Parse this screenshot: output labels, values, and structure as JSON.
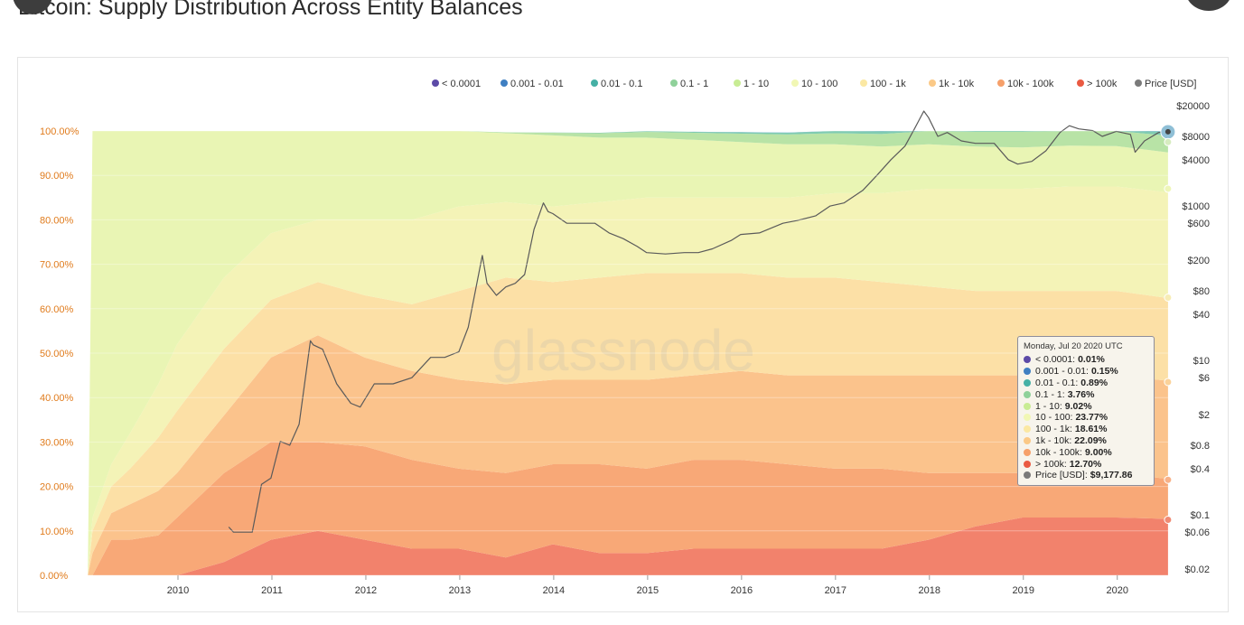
{
  "page": {
    "title": "Bitcoin: Supply Distribution Across Entity Balances"
  },
  "watermark": "glassnode",
  "tooltip": {
    "date": "Monday, Jul 20 2020 UTC",
    "rows": [
      {
        "label": "< 0.0001:",
        "value": "0.01%",
        "color": "#5c4aa7"
      },
      {
        "label": "0.001 - 0.01:",
        "value": "0.15%",
        "color": "#3f7fc2"
      },
      {
        "label": "0.01 - 0.1:",
        "value": "0.89%",
        "color": "#45b0a5"
      },
      {
        "label": "0.1 - 1:",
        "value": "3.76%",
        "color": "#8fd19a"
      },
      {
        "label": "1 - 10:",
        "value": "9.02%",
        "color": "#c8ec94"
      },
      {
        "label": "10 - 100:",
        "value": "23.77%",
        "color": "#f1f7b4"
      },
      {
        "label": "100 - 1k:",
        "value": "18.61%",
        "color": "#fbe8a3"
      },
      {
        "label": "1k - 10k:",
        "value": "22.09%",
        "color": "#fbc987"
      },
      {
        "label": "10k - 100k:",
        "value": "9.00%",
        "color": "#f6a06a"
      },
      {
        "label": "> 100k:",
        "value": "12.70%",
        "color": "#ea5a42"
      },
      {
        "label": "Price [USD]:",
        "value": "$9,177.86",
        "color": "#7a7a7a"
      }
    ]
  },
  "chart_data": {
    "type": "area",
    "stacked": true,
    "title": "Bitcoin: Supply Distribution Across Entity Balances",
    "x_ticks": [
      "2010",
      "2011",
      "2012",
      "2013",
      "2014",
      "2015",
      "2016",
      "2017",
      "2018",
      "2019",
      "2020"
    ],
    "x_range": [
      2009.0,
      2020.58
    ],
    "y_left_ticks": [
      "0.00%",
      "10.00%",
      "20.00%",
      "30.00%",
      "40.00%",
      "50.00%",
      "60.00%",
      "70.00%",
      "80.00%",
      "90.00%",
      "100.00%"
    ],
    "y_left_range": [
      0,
      100
    ],
    "y_right_ticks": [
      "$0.02",
      "$0.06",
      "$0.1",
      "$0.4",
      "$0.8",
      "$2",
      "$6",
      "$10",
      "$40",
      "$80",
      "$200",
      "$600",
      "$1000",
      "$4000",
      "$8000",
      "$20000"
    ],
    "y_right_scale": "log",
    "legend_position": "top-right",
    "x": [
      2009.05,
      2009.1,
      2009.3,
      2009.5,
      2009.8,
      2010.0,
      2010.5,
      2011.0,
      2011.5,
      2012.0,
      2012.5,
      2013.0,
      2013.5,
      2014.0,
      2014.5,
      2015.0,
      2015.5,
      2016.0,
      2016.5,
      2017.0,
      2017.5,
      2018.0,
      2018.5,
      2019.0,
      2019.5,
      2020.0,
      2020.55
    ],
    "series": [
      {
        "name": "> 100k",
        "color": "#f2826c",
        "values": [
          0,
          0,
          0,
          0,
          0,
          0,
          3,
          8,
          10,
          8,
          6,
          6,
          4,
          7,
          5,
          5,
          6,
          6,
          6,
          6,
          6,
          8,
          11,
          13,
          13,
          13,
          12.7
        ]
      },
      {
        "name": "10k - 100k",
        "color": "#f8a877",
        "values": [
          0,
          0,
          8,
          8,
          9,
          13,
          20,
          22,
          20,
          21,
          20,
          18,
          19,
          18,
          20,
          19,
          20,
          20,
          19,
          18,
          18,
          15,
          12,
          10,
          10,
          10,
          9
        ]
      },
      {
        "name": "1k - 10k",
        "color": "#fbc38c",
        "values": [
          0,
          5,
          6,
          8,
          10,
          10,
          13,
          19,
          24,
          20,
          20,
          20,
          20,
          19,
          19,
          20,
          19,
          20,
          20,
          21,
          21,
          22,
          22,
          22,
          22,
          22,
          22.09
        ]
      },
      {
        "name": "100 - 1k",
        "color": "#fce0a6",
        "values": [
          0,
          5,
          6,
          8,
          12,
          14,
          15,
          13,
          12,
          14,
          15,
          20,
          24,
          22,
          23,
          24,
          23,
          22,
          22,
          22,
          21,
          20,
          19,
          19,
          19,
          19,
          18.61
        ]
      },
      {
        "name": "10 - 100",
        "color": "#f4f3b7",
        "values": [
          0,
          3,
          5,
          8,
          12,
          15,
          16,
          15,
          14,
          17,
          19,
          19,
          17,
          17,
          17,
          17,
          17,
          17,
          18,
          19,
          20,
          22,
          23,
          23,
          23.5,
          23.5,
          23.77
        ]
      },
      {
        "name": "1 - 10",
        "color": "#e9f5b4",
        "values": [
          0,
          87,
          75,
          68,
          57,
          48,
          33,
          23,
          20,
          20,
          20,
          17,
          15.5,
          16,
          14.5,
          13.5,
          13,
          12.5,
          12,
          11,
          10.5,
          10,
          9.5,
          9.3,
          9.2,
          9.1,
          9.02
        ]
      },
      {
        "name": "0.1 - 1",
        "color": "#b8e3a6",
        "values": [
          0,
          0,
          0,
          0,
          0,
          0,
          0,
          0,
          0,
          0,
          0,
          0,
          0.2,
          0.6,
          1.0,
          1.3,
          1.6,
          1.9,
          2.2,
          2.5,
          2.8,
          3.1,
          3.3,
          3.5,
          3.6,
          3.7,
          3.76
        ]
      },
      {
        "name": "0.01 - 0.1",
        "color": "#7fcbb1",
        "values": [
          0,
          0,
          0,
          0,
          0,
          0,
          0,
          0,
          0,
          0,
          0,
          0,
          0,
          0.05,
          0.1,
          0.15,
          0.2,
          0.3,
          0.4,
          0.5,
          0.6,
          0.7,
          0.75,
          0.8,
          0.85,
          0.87,
          0.89
        ]
      },
      {
        "name": "0.001 - 0.01",
        "color": "#5ea7c8",
        "values": [
          0,
          0,
          0,
          0,
          0,
          0,
          0,
          0,
          0,
          0,
          0,
          0,
          0,
          0,
          0,
          0.01,
          0.02,
          0.03,
          0.05,
          0.07,
          0.09,
          0.11,
          0.12,
          0.13,
          0.14,
          0.15,
          0.15
        ]
      },
      {
        "name": "< 0.0001",
        "color": "#6a5bb0",
        "values": [
          0,
          0,
          0,
          0,
          0,
          0,
          0,
          0,
          0,
          0,
          0,
          0,
          0,
          0,
          0,
          0,
          0,
          0,
          0,
          0,
          0,
          0,
          0,
          0,
          0.01,
          0.01,
          0.01
        ]
      }
    ],
    "price": {
      "name": "Price [USD]",
      "color": "#5a5a5a",
      "x": [
        2010.55,
        2010.6,
        2010.8,
        2010.9,
        2011.0,
        2011.1,
        2011.2,
        2011.3,
        2011.42,
        2011.45,
        2011.55,
        2011.7,
        2011.85,
        2011.95,
        2012.1,
        2012.3,
        2012.5,
        2012.7,
        2012.85,
        2013.0,
        2013.1,
        2013.25,
        2013.3,
        2013.4,
        2013.5,
        2013.6,
        2013.7,
        2013.8,
        2013.9,
        2013.95,
        2014.0,
        2014.15,
        2014.3,
        2014.45,
        2014.6,
        2014.75,
        2014.9,
        2015.0,
        2015.2,
        2015.4,
        2015.55,
        2015.7,
        2015.9,
        2016.0,
        2016.2,
        2016.45,
        2016.6,
        2016.8,
        2016.95,
        2017.1,
        2017.3,
        2017.45,
        2017.6,
        2017.75,
        2017.85,
        2017.95,
        2018.0,
        2018.1,
        2018.2,
        2018.35,
        2018.5,
        2018.7,
        2018.85,
        2018.95,
        2019.1,
        2019.25,
        2019.4,
        2019.5,
        2019.6,
        2019.75,
        2019.85,
        2020.0,
        2020.15,
        2020.2,
        2020.3,
        2020.45,
        2020.55
      ],
      "values": [
        0.07,
        0.06,
        0.06,
        0.25,
        0.3,
        0.9,
        0.8,
        1.5,
        18,
        16,
        14,
        5,
        2.8,
        2.5,
        5,
        5,
        6,
        11,
        11,
        13,
        27,
        230,
        100,
        70,
        90,
        100,
        130,
        500,
        1100,
        850,
        800,
        600,
        600,
        600,
        450,
        380,
        300,
        250,
        240,
        250,
        250,
        280,
        360,
        430,
        450,
        600,
        650,
        750,
        1000,
        1100,
        1600,
        2500,
        4000,
        6000,
        10000,
        17000,
        14000,
        8000,
        9000,
        7000,
        6500,
        6500,
        4000,
        3500,
        3800,
        5200,
        9000,
        11000,
        10000,
        9500,
        8000,
        9300,
        8500,
        5000,
        7000,
        9000,
        9177.86
      ]
    },
    "legend": [
      {
        "label": "< 0.0001",
        "color": "#5c4aa7"
      },
      {
        "label": "0.001 - 0.01",
        "color": "#3f7fc2"
      },
      {
        "label": "0.01 - 0.1",
        "color": "#45b0a5"
      },
      {
        "label": "0.1 - 1",
        "color": "#8fd19a"
      },
      {
        "label": "1 - 10",
        "color": "#c8ec94"
      },
      {
        "label": "10 - 100",
        "color": "#f1f7b4"
      },
      {
        "label": "100 - 1k",
        "color": "#fbe8a3"
      },
      {
        "label": "1k - 10k",
        "color": "#fbc987"
      },
      {
        "label": "10k - 100k",
        "color": "#f6a06a"
      },
      {
        "label": "> 100k",
        "color": "#ea5a42"
      },
      {
        "label": "Price [USD]",
        "color": "#7a7a7a"
      }
    ]
  }
}
